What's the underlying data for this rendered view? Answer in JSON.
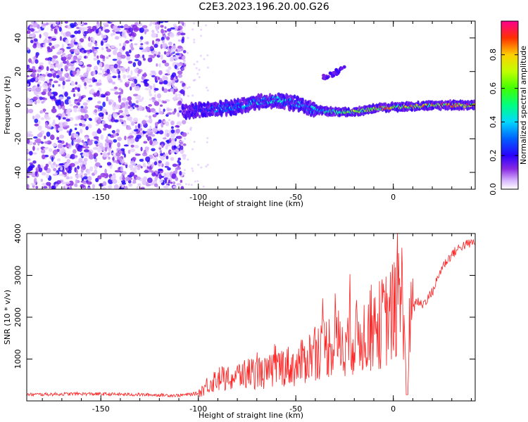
{
  "title": "C2E3.2023.196.20.00.G26",
  "chart_data": [
    {
      "type": "heatmap",
      "xlabel": "Height of straight line (km)",
      "ylabel": "Frequency (Hz)",
      "xlim": [
        -188,
        42
      ],
      "ylim": [
        -50,
        50
      ],
      "xticks": [
        -150,
        -100,
        -50,
        0
      ],
      "yticks": [
        -40,
        -20,
        0,
        20,
        40
      ],
      "colorbar": {
        "label": "Normalized spectral amplitude",
        "ticks": [
          0.0,
          0.2,
          0.4,
          0.6,
          0.8
        ],
        "range": [
          0,
          1
        ]
      },
      "ridge": {
        "x": [
          -108,
          -100,
          -90,
          -80,
          -70,
          -60,
          -50,
          -40,
          -30,
          -20,
          -10,
          0,
          10,
          20,
          30,
          42
        ],
        "frequency": [
          -4,
          -3,
          -2,
          -1,
          2,
          3,
          1,
          -3,
          -4,
          -4,
          -2,
          -1,
          -1,
          0,
          0,
          0
        ],
        "amplitude": [
          0.15,
          0.25,
          0.35,
          0.4,
          0.45,
          0.45,
          0.4,
          0.45,
          0.55,
          0.7,
          0.8,
          0.85,
          0.8,
          0.85,
          0.9,
          0.95
        ]
      },
      "noise_region_x": [
        -188,
        -107
      ],
      "side_feature": {
        "x": [
          -36,
          -25
        ],
        "frequency": [
          16,
          22
        ]
      }
    },
    {
      "type": "line",
      "xlabel": "Height of straight line (km)",
      "ylabel": "SNR (10 * v/v)",
      "xlim": [
        -188,
        42
      ],
      "ylim": [
        0,
        4000
      ],
      "xticks": [
        -150,
        -100,
        -50,
        0
      ],
      "yticks": [
        1000,
        2000,
        3000,
        4000
      ],
      "series": [
        {
          "color": "#ff2020",
          "x": [
            -188,
            -160,
            -130,
            -110,
            -100,
            -95,
            -90,
            -85,
            -80,
            -75,
            -70,
            -65,
            -60,
            -55,
            -50,
            -45,
            -40,
            -35,
            -30,
            -25,
            -20,
            -15,
            -10,
            -5,
            0,
            3,
            5,
            7,
            9,
            12,
            15,
            20,
            25,
            30,
            35,
            42
          ],
          "y": [
            150,
            170,
            150,
            130,
            180,
            400,
            550,
            500,
            600,
            650,
            700,
            650,
            800,
            850,
            800,
            1000,
            1200,
            1300,
            1400,
            1400,
            1500,
            1600,
            1700,
            1900,
            2100,
            2400,
            2500,
            800,
            2000,
            2400,
            2300,
            2600,
            3200,
            3500,
            3700,
            3800
          ]
        }
      ]
    }
  ]
}
